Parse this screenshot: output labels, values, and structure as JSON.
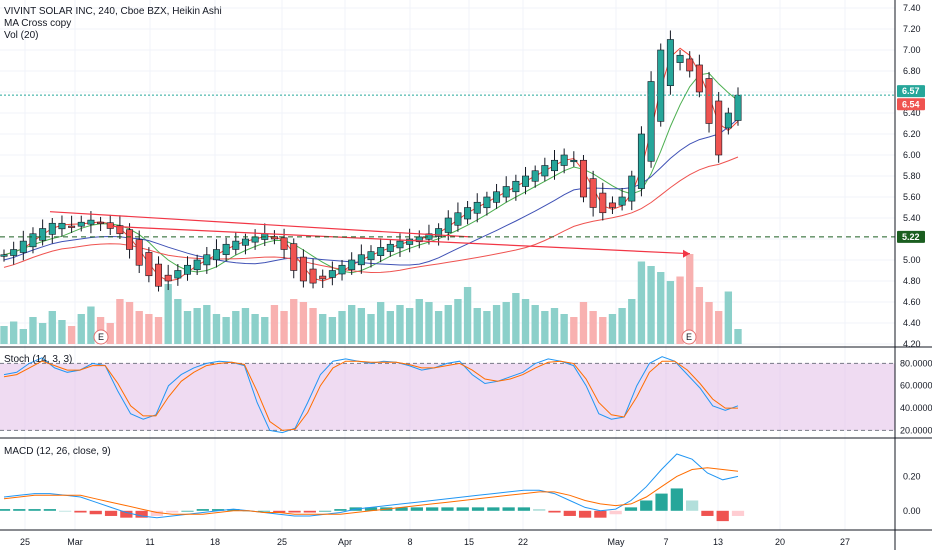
{
  "header": {
    "title": "VIVINT SOLAR INC, 240, Cboe BZX, Heikin Ashi",
    "ma_label": "MA Cross copy",
    "vol_label": "Vol (20)"
  },
  "stoch": {
    "label": "Stoch (14, 3, 3)"
  },
  "macd": {
    "label": "MACD (12, 26, close, 9)"
  },
  "tags": [
    {
      "value": "6.57",
      "color": "#26a69a",
      "axis_color": "#4caf50"
    },
    {
      "value": "6.54",
      "color": "#ef5350"
    },
    {
      "value": "5.22",
      "color": "#1b5e20"
    }
  ],
  "earnings_markers": [
    "E",
    "E"
  ],
  "chart_data": [
    {
      "type": "candlestick",
      "panel": "price",
      "title": "VIVINT SOLAR INC, 240, Cboe BZX, Heikin Ashi",
      "y_ticks": [
        "7.40",
        "7.20",
        "7.00",
        "6.80",
        "6.60",
        "6.40",
        "6.20",
        "6.00",
        "5.80",
        "5.60",
        "5.40",
        "5.20",
        "5.00",
        "4.80",
        "4.60",
        "4.40",
        "4.20"
      ],
      "ylim": [
        4.2,
        7.4
      ],
      "x_ticks": [
        "25",
        "Mar",
        "11",
        "18",
        "25",
        "Apr",
        "8",
        "15",
        "22",
        "May",
        "7",
        "13",
        "20",
        "27"
      ],
      "approximate_close": [
        5.05,
        5.1,
        5.18,
        5.25,
        5.3,
        5.35,
        5.35,
        5.32,
        5.36,
        5.38,
        5.35,
        5.3,
        5.25,
        5.1,
        4.95,
        4.85,
        4.75,
        4.8,
        4.9,
        4.95,
        5.0,
        5.05,
        5.1,
        5.15,
        5.18,
        5.2,
        5.22,
        5.25,
        5.2,
        5.1,
        4.9,
        4.8,
        4.78,
        4.82,
        4.9,
        4.95,
        5.0,
        5.05,
        5.08,
        5.12,
        5.15,
        5.18,
        5.2,
        5.22,
        5.25,
        5.3,
        5.4,
        5.45,
        5.5,
        5.55,
        5.6,
        5.65,
        5.7,
        5.75,
        5.8,
        5.85,
        5.9,
        5.95,
        6.0,
        5.95,
        5.6,
        5.5,
        5.45,
        5.5,
        5.6,
        5.8,
        6.2,
        6.7,
        7.0,
        7.1,
        6.95,
        6.8,
        6.6,
        6.3,
        6.0,
        6.4,
        6.57
      ],
      "reference_levels": [
        6.57,
        6.54,
        5.22
      ],
      "ma_lines": [
        "fast",
        "medium",
        "slow",
        "slowest"
      ],
      "trendlines": [
        "descending resistance Feb–May with arrow"
      ],
      "volume": [
        12,
        15,
        10,
        18,
        14,
        22,
        16,
        12,
        20,
        25,
        18,
        14,
        30,
        28,
        22,
        20,
        18,
        40,
        30,
        22,
        24,
        26,
        20,
        18,
        22,
        24,
        20,
        18,
        26,
        22,
        30,
        28,
        24,
        20,
        18,
        22,
        26,
        24,
        20,
        28,
        22,
        26,
        24,
        30,
        28,
        22,
        26,
        30,
        38,
        24,
        22,
        26,
        28,
        34,
        30,
        26,
        22,
        24,
        20,
        18,
        28,
        22,
        18,
        20,
        24,
        30,
        55,
        52,
        48,
        42,
        45,
        60,
        38,
        28,
        22,
        35,
        10
      ],
      "volume_axis": "hidden"
    },
    {
      "type": "line",
      "panel": "stochastic",
      "title": "Stoch (14, 3, 3)",
      "y_ticks": [
        "80.0000",
        "60.0000",
        "40.0000",
        "20.0000"
      ],
      "ylim": [
        15,
        92
      ],
      "band": [
        20,
        80
      ],
      "series": [
        {
          "name": "%K",
          "color": "#2196f3",
          "values": [
            70,
            72,
            80,
            85,
            76,
            72,
            74,
            80,
            78,
            55,
            35,
            30,
            34,
            60,
            70,
            76,
            80,
            82,
            81,
            78,
            45,
            20,
            18,
            22,
            45,
            70,
            82,
            84,
            82,
            80,
            82,
            81,
            78,
            74,
            76,
            80,
            82,
            70,
            62,
            64,
            68,
            72,
            80,
            84,
            82,
            78,
            60,
            35,
            30,
            32,
            60,
            80,
            86,
            82,
            70,
            58,
            42,
            38,
            42
          ]
        },
        {
          "name": "%D",
          "color": "#ff6d00",
          "values": [
            68,
            70,
            76,
            82,
            78,
            74,
            74,
            78,
            78,
            62,
            42,
            33,
            33,
            50,
            64,
            72,
            78,
            80,
            81,
            79,
            55,
            28,
            20,
            21,
            36,
            60,
            76,
            82,
            82,
            81,
            81,
            81,
            79,
            76,
            76,
            78,
            80,
            74,
            66,
            64,
            66,
            70,
            76,
            81,
            82,
            80,
            66,
            45,
            34,
            32,
            50,
            72,
            82,
            82,
            74,
            62,
            48,
            40,
            40
          ]
        }
      ]
    },
    {
      "type": "bar",
      "panel": "macd",
      "title": "MACD (12, 26, close, 9)",
      "y_ticks": [
        "0.20",
        "0.00"
      ],
      "ylim": [
        -0.1,
        0.4
      ],
      "series": [
        {
          "name": "MACD",
          "color": "#2196f3",
          "values": [
            0.08,
            0.09,
            0.1,
            0.1,
            0.09,
            0.08,
            0.05,
            0.02,
            -0.01,
            -0.03,
            -0.04,
            -0.03,
            -0.02,
            -0.01,
            0.0,
            0.01,
            0.0,
            -0.01,
            -0.02,
            -0.03,
            -0.03,
            -0.02,
            -0.01,
            0.01,
            0.02,
            0.03,
            0.04,
            0.05,
            0.06,
            0.07,
            0.08,
            0.09,
            0.1,
            0.11,
            0.12,
            0.12,
            0.1,
            0.06,
            0.02,
            0.0,
            0.01,
            0.06,
            0.14,
            0.24,
            0.33,
            0.3,
            0.22,
            0.18,
            0.2
          ]
        },
        {
          "name": "Signal",
          "color": "#ff6d00",
          "values": [
            0.07,
            0.08,
            0.09,
            0.09,
            0.09,
            0.09,
            0.07,
            0.05,
            0.03,
            0.01,
            -0.01,
            -0.02,
            -0.02,
            -0.02,
            -0.01,
            0.0,
            0.0,
            -0.01,
            -0.01,
            -0.02,
            -0.02,
            -0.02,
            -0.02,
            -0.01,
            0.0,
            0.01,
            0.02,
            0.03,
            0.04,
            0.05,
            0.06,
            0.07,
            0.08,
            0.09,
            0.1,
            0.11,
            0.11,
            0.09,
            0.06,
            0.04,
            0.03,
            0.04,
            0.08,
            0.14,
            0.2,
            0.24,
            0.25,
            0.24,
            0.23
          ]
        },
        {
          "name": "Histogram",
          "values": [
            0.01,
            0.01,
            0.01,
            0.01,
            0.0,
            -0.01,
            -0.02,
            -0.03,
            -0.04,
            -0.04,
            -0.03,
            -0.01,
            0.0,
            0.01,
            0.01,
            0.01,
            0.0,
            0.0,
            -0.01,
            -0.01,
            -0.01,
            0.0,
            0.01,
            0.02,
            0.02,
            0.02,
            0.02,
            0.02,
            0.02,
            0.02,
            0.02,
            0.02,
            0.02,
            0.02,
            0.02,
            0.01,
            -0.01,
            -0.03,
            -0.04,
            -0.04,
            -0.02,
            0.02,
            0.06,
            0.1,
            0.13,
            0.06,
            -0.03,
            -0.06,
            -0.03
          ]
        }
      ]
    }
  ]
}
